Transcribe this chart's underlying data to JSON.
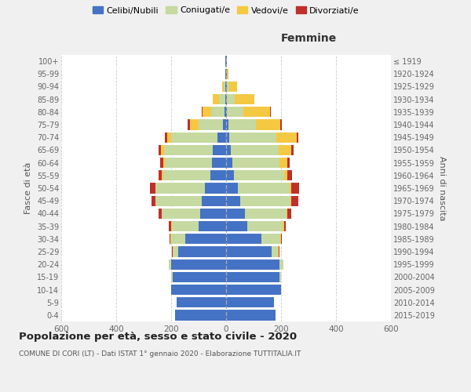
{
  "age_groups": [
    "0-4",
    "5-9",
    "10-14",
    "15-19",
    "20-24",
    "25-29",
    "30-34",
    "35-39",
    "40-44",
    "45-49",
    "50-54",
    "55-59",
    "60-64",
    "65-69",
    "70-74",
    "75-79",
    "80-84",
    "85-89",
    "90-94",
    "95-99",
    "100+"
  ],
  "birth_years": [
    "2015-2019",
    "2010-2014",
    "2005-2009",
    "2000-2004",
    "1995-1999",
    "1990-1994",
    "1985-1989",
    "1980-1984",
    "1975-1979",
    "1970-1974",
    "1965-1969",
    "1960-1964",
    "1955-1959",
    "1950-1954",
    "1945-1949",
    "1940-1944",
    "1935-1939",
    "1930-1934",
    "1925-1929",
    "1920-1924",
    "≤ 1919"
  ],
  "colors": {
    "celibe": "#4472c4",
    "coniugato": "#c5d9a0",
    "vedovo": "#f5c842",
    "divorziato": "#c0302a"
  },
  "male": {
    "celibe": [
      185,
      180,
      200,
      195,
      200,
      175,
      148,
      100,
      95,
      88,
      78,
      58,
      52,
      48,
      32,
      12,
      6,
      4,
      2,
      2,
      2
    ],
    "coniugato": [
      0,
      0,
      0,
      4,
      10,
      20,
      52,
      98,
      138,
      168,
      178,
      172,
      172,
      178,
      168,
      88,
      48,
      22,
      8,
      2,
      0
    ],
    "vedovo": [
      0,
      0,
      0,
      0,
      0,
      0,
      2,
      2,
      2,
      2,
      2,
      3,
      5,
      10,
      14,
      32,
      32,
      22,
      4,
      0,
      0
    ],
    "divorziato": [
      0,
      0,
      0,
      0,
      0,
      2,
      4,
      8,
      10,
      14,
      18,
      14,
      10,
      10,
      8,
      8,
      4,
      2,
      0,
      0,
      0
    ]
  },
  "female": {
    "nubile": [
      180,
      175,
      200,
      195,
      195,
      165,
      128,
      78,
      68,
      52,
      42,
      28,
      22,
      18,
      12,
      8,
      4,
      2,
      2,
      2,
      2
    ],
    "coniugata": [
      0,
      0,
      0,
      4,
      14,
      24,
      68,
      128,
      152,
      182,
      188,
      182,
      172,
      172,
      172,
      100,
      58,
      28,
      10,
      2,
      0
    ],
    "vedova": [
      0,
      0,
      0,
      0,
      0,
      2,
      4,
      4,
      4,
      4,
      8,
      12,
      28,
      48,
      72,
      88,
      98,
      72,
      28,
      4,
      0
    ],
    "divorziata": [
      0,
      0,
      0,
      0,
      0,
      2,
      4,
      8,
      14,
      24,
      28,
      18,
      10,
      8,
      8,
      6,
      4,
      2,
      0,
      0,
      0
    ]
  },
  "title": "Popolazione per età, sesso e stato civile - 2020",
  "subtitle": "COMUNE DI CORI (LT) - Dati ISTAT 1° gennaio 2020 - Elaborazione TUTTITALIA.IT",
  "xlabel_right": "Femmine",
  "ylabel_left": "Fasce di età",
  "ylabel_right": "Anni di nascita",
  "xlim": 600,
  "legend_labels": [
    "Celibi/Nubili",
    "Coniugati/e",
    "Vedovi/e",
    "Divorziati/e"
  ],
  "background_color": "#f0f0f0",
  "plot_background": "#ffffff"
}
